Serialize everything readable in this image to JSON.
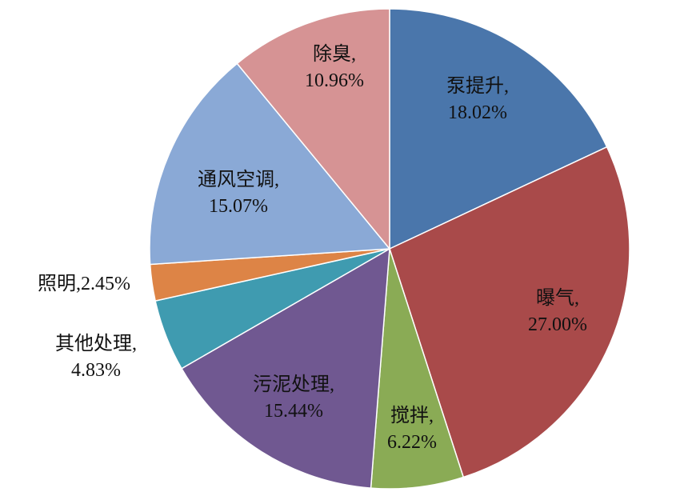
{
  "chart_data": {
    "type": "pie",
    "categories": [
      "泵提升,",
      "曝气,",
      "搅拌,",
      "污泥处理,",
      "其他处理,",
      "照明,",
      "通风空调,",
      "除臭,"
    ],
    "values": [
      18.02,
      27.0,
      6.22,
      15.44,
      4.83,
      2.45,
      15.07,
      10.96
    ],
    "value_labels": [
      "18.02%",
      "27.00%",
      "6.22%",
      "15.44%",
      "4.83%",
      "2.45%",
      "15.07%",
      "10.96%"
    ],
    "colors": [
      "#4a76ab",
      "#a94a4a",
      "#8aab55",
      "#705891",
      "#3f9bb0",
      "#dd8446",
      "#8aa9d6",
      "#d69394"
    ]
  }
}
